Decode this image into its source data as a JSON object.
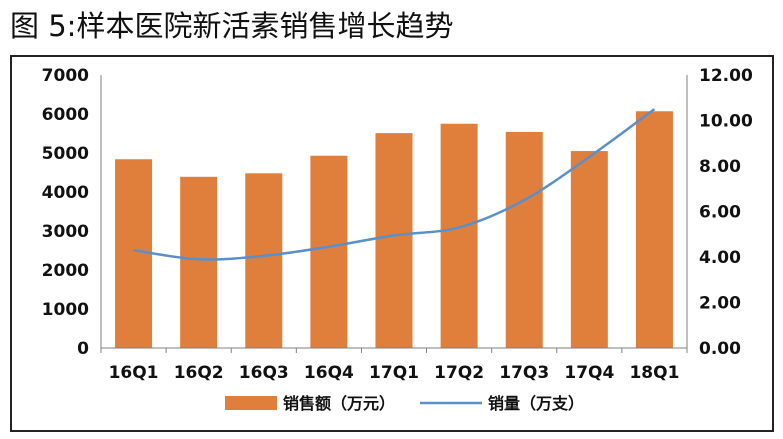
{
  "figure_title": "图 5:样本医院新活素销售增长趋势",
  "colors": {
    "bar": "#E07E3C",
    "line": "#5B8FC9",
    "axis": "#7F7F7F"
  },
  "chart_data": {
    "type": "bar",
    "categories": [
      "16Q1",
      "16Q2",
      "16Q3",
      "16Q4",
      "17Q1",
      "17Q2",
      "17Q3",
      "17Q4",
      "18Q1"
    ],
    "series": [
      {
        "name": "销售额（万元）",
        "type": "bar",
        "axis": "left",
        "values": [
          4840,
          4390,
          4480,
          4930,
          5510,
          5750,
          5540,
          5050,
          6070
        ]
      },
      {
        "name": "销量（万支）",
        "type": "line",
        "axis": "right",
        "values": [
          4.3,
          3.9,
          4.05,
          4.45,
          4.95,
          5.3,
          6.5,
          8.4,
          10.5
        ]
      }
    ],
    "y_left": {
      "ylim": [
        0,
        7000
      ],
      "ticks": [
        "0",
        "1000",
        "2000",
        "3000",
        "4000",
        "5000",
        "6000",
        "7000"
      ]
    },
    "y_right": {
      "ylim": [
        0,
        12
      ],
      "ticks": [
        "0.00",
        "2.00",
        "4.00",
        "6.00",
        "8.00",
        "10.00",
        "12.00"
      ]
    },
    "legend_position": "bottom",
    "grid": false
  }
}
